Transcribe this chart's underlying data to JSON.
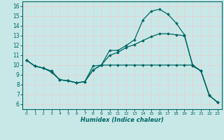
{
  "xlabel": "Humidex (Indice chaleur)",
  "xlim": [
    -0.5,
    23.5
  ],
  "ylim": [
    5.5,
    16.5
  ],
  "xticks": [
    0,
    1,
    2,
    3,
    4,
    5,
    6,
    7,
    8,
    9,
    10,
    11,
    12,
    13,
    14,
    15,
    16,
    17,
    18,
    19,
    20,
    21,
    22,
    23
  ],
  "yticks": [
    6,
    7,
    8,
    9,
    10,
    11,
    12,
    13,
    14,
    15,
    16
  ],
  "bg_color": "#c8e8e8",
  "line_color": "#006666",
  "grid_color": "#e8d0d0",
  "lines": [
    {
      "x": [
        0,
        1,
        2,
        3,
        4,
        5,
        6,
        7,
        8,
        9,
        10,
        11,
        12,
        13,
        14,
        15,
        16,
        17,
        18,
        19,
        20,
        21,
        22,
        23
      ],
      "y": [
        10.5,
        9.9,
        9.7,
        9.4,
        8.5,
        8.4,
        8.2,
        8.3,
        9.9,
        10.0,
        11.5,
        11.5,
        12.0,
        12.6,
        14.6,
        15.5,
        15.7,
        15.2,
        14.3,
        13.1,
        9.9,
        9.4,
        6.9,
        6.2
      ]
    },
    {
      "x": [
        0,
        1,
        2,
        3,
        4,
        5,
        6,
        7,
        8,
        9,
        10,
        11,
        12,
        13,
        14,
        15,
        16,
        17,
        18,
        19,
        20,
        21,
        22,
        23
      ],
      "y": [
        10.5,
        9.9,
        9.7,
        9.3,
        8.5,
        8.4,
        8.2,
        8.3,
        9.5,
        10.0,
        11.0,
        11.3,
        11.8,
        12.1,
        12.5,
        12.9,
        13.2,
        13.2,
        13.1,
        13.0,
        10.0,
        9.4,
        6.9,
        6.2
      ]
    },
    {
      "x": [
        0,
        1,
        2,
        3,
        4,
        5,
        6,
        7,
        8,
        9,
        10,
        11,
        12,
        13,
        14,
        15,
        16,
        17,
        18,
        19,
        20,
        21,
        22,
        23
      ],
      "y": [
        10.5,
        9.9,
        9.7,
        9.3,
        8.5,
        8.4,
        8.2,
        8.3,
        9.5,
        10.0,
        10.0,
        10.0,
        10.0,
        10.0,
        10.0,
        10.0,
        10.0,
        10.0,
        10.0,
        10.0,
        10.0,
        9.4,
        6.9,
        6.2
      ]
    }
  ]
}
